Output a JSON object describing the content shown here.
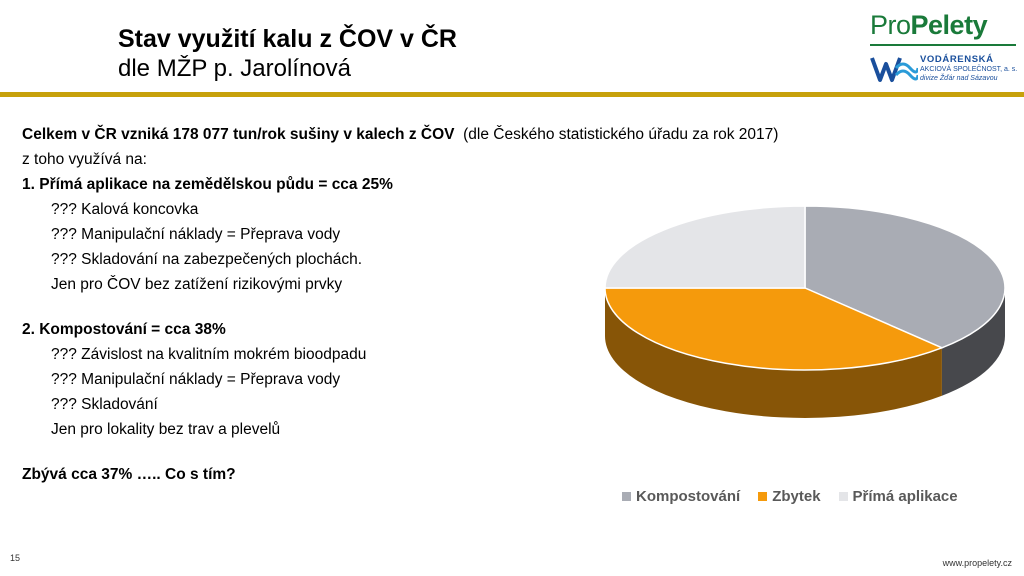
{
  "header": {
    "title": "Stav využití kalu z ČOV v ČR",
    "subtitle": "dle MŽP p. Jarolínová"
  },
  "logo": {
    "pro": "Pro",
    "peletky": "Pelety",
    "company_name": "VODÁRENSKÁ",
    "company_sub": "AKCIOVÁ SPOLEČNOST, a. s.",
    "company_division": "divize Žďár nad Sázavou"
  },
  "content": {
    "intro_bold": "Celkem v ČR vzniká 178 077 tun/rok sušiny v kalech z ČOV",
    "intro_note": "(dle Českého statistického úřadu za rok 2017)",
    "line_uses": "z toho využívá na:",
    "item1_heading": "1. Přímá aplikace na zemědělskou půdu = cca 25%",
    "item1_points": [
      "??? Kalová koncovka",
      "??? Manipulační náklady = Přeprava vody",
      "??? Skladování na zabezpečených plochách.",
      "Jen pro ČOV bez zatížení rizikovými prvky"
    ],
    "item2_heading": "2. Kompostování =  cca 38%",
    "item2_points": [
      "??? Závislost na kvalitním mokrém bioodpadu",
      "??? Manipulační náklady = Přeprava vody",
      "??? Skladování",
      "Jen pro lokality bez trav a plevelů"
    ],
    "remaining": "Zbývá  cca 37%  ….. Co s tím?"
  },
  "chart_data": {
    "type": "pie",
    "style": "3d",
    "categories": [
      "Kompostování",
      "Zbytek",
      "Přímá aplikace"
    ],
    "values": [
      38,
      37,
      25
    ],
    "colors": [
      "#a9acb4",
      "#f59a0c",
      "#e4e5e8"
    ],
    "legend_position": "bottom"
  },
  "footer": {
    "page_number": "15",
    "url": "www.propelety.cz"
  }
}
